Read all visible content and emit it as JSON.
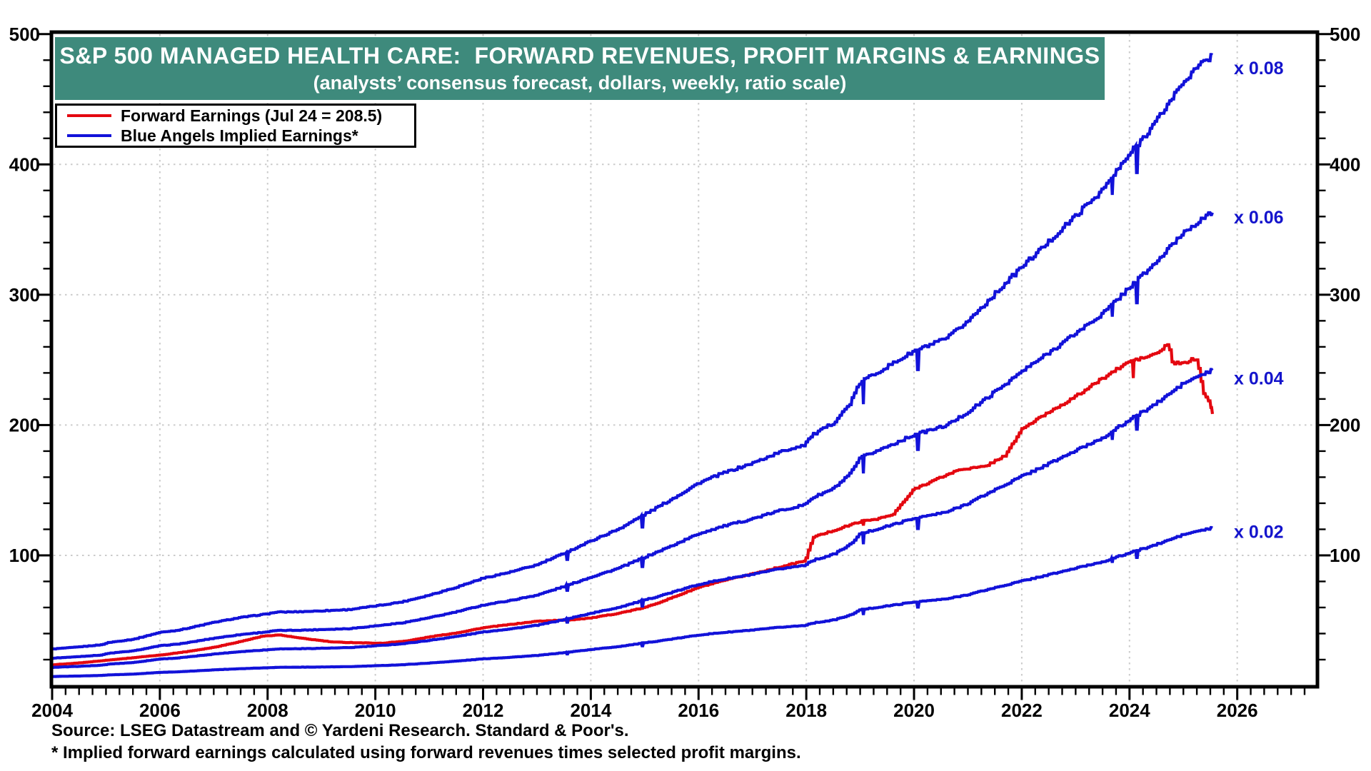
{
  "banner": {
    "title": "S&P 500 MANAGED HEALTH CARE:  FORWARD REVENUES, PROFIT MARGINS & EARNINGS",
    "subtitle": "(analysts’ consensus forecast, dollars, weekly, ratio scale)",
    "background_color": "#3e8a7c",
    "text_color": "#ffffff"
  },
  "legend": {
    "items": [
      {
        "label": "Forward Earnings (Jul 24 = 208.5)",
        "color_key": "earnings"
      },
      {
        "label": "Blue Angels Implied Earnings*",
        "color_key": "implied"
      }
    ]
  },
  "footer": {
    "source": "Source: LSEG Datastream and © Yardeni Research. Standard & Poor's.",
    "footnote": "* Implied forward earnings calculated using forward revenues times selected profit margins."
  },
  "chart_data": {
    "type": "line",
    "title": "S&P 500 MANAGED HEALTH CARE: FORWARD REVENUES, PROFIT MARGINS & EARNINGS",
    "subtitle": "(analysts' consensus forecast, dollars, weekly, ratio scale)",
    "colors": {
      "earnings": "#e40810",
      "implied": "#1212d9",
      "multiplier_label": "#1414cc",
      "grid": "#cbcbcb",
      "axis": "#000000"
    },
    "x_axis": {
      "start": 2004,
      "end": 2027.5,
      "label_years": [
        2004,
        2006,
        2008,
        2010,
        2012,
        2014,
        2016,
        2018,
        2020,
        2022,
        2024,
        2026
      ],
      "minor_tick_interval_years": 0.25,
      "gridline_years": [
        2006,
        2008,
        2010,
        2012,
        2014,
        2016,
        2018,
        2020,
        2022,
        2024,
        2026
      ]
    },
    "y_axis": {
      "min": 0,
      "max": 500,
      "major_ticks": [
        100,
        200,
        300,
        400,
        500
      ],
      "minor_tick_interval": 20,
      "gridlines": [
        100,
        200,
        300,
        400
      ],
      "labels_both_sides": true
    },
    "legend_position": "top-left",
    "grid": "dotted",
    "series": [
      {
        "name": "Forward Earnings",
        "color_key": "earnings",
        "last_observation": "Jul 24",
        "last_value": 208.5,
        "peak_value": 263,
        "peak_year": 2024.7
      },
      {
        "name": "Blue Angels Implied Earnings (forward revenues × margin)",
        "color_key": "implied",
        "multipliers": [
          0.08,
          0.06,
          0.04,
          0.02
        ],
        "end_values_mid_2025": [
          484,
          363,
          242,
          121
        ]
      }
    ],
    "multiplier_labels": [
      {
        "text": "x 0.08",
        "multiplier": 0.08,
        "y_offset": 19
      },
      {
        "text": "x 0.06",
        "multiplier": 0.06,
        "y_offset": 7
      },
      {
        "text": "x 0.04",
        "multiplier": 0.04,
        "y_offset": 12
      },
      {
        "text": "x 0.02",
        "multiplier": 0.02,
        "y_offset": 6
      }
    ],
    "forward_revenues_anchors": [
      [
        2004.0,
        352
      ],
      [
        2004.4,
        368
      ],
      [
        2004.9,
        392
      ],
      [
        2005.05,
        415
      ],
      [
        2005.5,
        445
      ],
      [
        2006.0,
        512
      ],
      [
        2006.3,
        530
      ],
      [
        2006.5,
        550
      ],
      [
        2007.0,
        608
      ],
      [
        2007.5,
        655
      ],
      [
        2008.0,
        690
      ],
      [
        2008.15,
        705
      ],
      [
        2008.6,
        710
      ],
      [
        2009.0,
        718
      ],
      [
        2009.5,
        730
      ],
      [
        2010.0,
        765
      ],
      [
        2010.5,
        805
      ],
      [
        2011.0,
        870
      ],
      [
        2011.5,
        945
      ],
      [
        2012.0,
        1032
      ],
      [
        2012.5,
        1090
      ],
      [
        2013.0,
        1160
      ],
      [
        2013.5,
        1270
      ],
      [
        2014.0,
        1390
      ],
      [
        2014.5,
        1500
      ],
      [
        2015.0,
        1645
      ],
      [
        2015.5,
        1790
      ],
      [
        2016.0,
        1945
      ],
      [
        2016.4,
        2030
      ],
      [
        2017.0,
        2135
      ],
      [
        2017.5,
        2240
      ],
      [
        2017.95,
        2310
      ],
      [
        2018.1,
        2400
      ],
      [
        2018.5,
        2520
      ],
      [
        2018.8,
        2700
      ],
      [
        2019.0,
        2915
      ],
      [
        2019.5,
        3060
      ],
      [
        2020.0,
        3210
      ],
      [
        2020.6,
        3330
      ],
      [
        2021.0,
        3500
      ],
      [
        2021.5,
        3760
      ],
      [
        2022.0,
        4020
      ],
      [
        2022.5,
        4260
      ],
      [
        2023.0,
        4510
      ],
      [
        2023.5,
        4760
      ],
      [
        2024.0,
        5100
      ],
      [
        2024.5,
        5420
      ],
      [
        2025.0,
        5800
      ],
      [
        2025.3,
        5950
      ],
      [
        2025.54,
        6050
      ]
    ],
    "forward_earnings_anchors": [
      [
        2004.0,
        16
      ],
      [
        2004.5,
        17.5
      ],
      [
        2005.0,
        19.5
      ],
      [
        2005.5,
        21.5
      ],
      [
        2006.0,
        23.5
      ],
      [
        2006.5,
        26.2
      ],
      [
        2007.0,
        29.5
      ],
      [
        2007.5,
        34
      ],
      [
        2007.9,
        38
      ],
      [
        2008.2,
        39
      ],
      [
        2008.6,
        36.5
      ],
      [
        2009.2,
        33.5
      ],
      [
        2010.1,
        32.5
      ],
      [
        2010.6,
        34.5
      ],
      [
        2011.0,
        37.5
      ],
      [
        2011.5,
        40.5
      ],
      [
        2012.0,
        44.5
      ],
      [
        2012.5,
        47
      ],
      [
        2013.0,
        49.5
      ],
      [
        2013.6,
        50.5
      ],
      [
        2014.0,
        52
      ],
      [
        2014.5,
        55.5
      ],
      [
        2015.0,
        60
      ],
      [
        2015.5,
        67.5
      ],
      [
        2016.0,
        75.5
      ],
      [
        2016.5,
        81
      ],
      [
        2017.0,
        86
      ],
      [
        2017.5,
        91
      ],
      [
        2017.98,
        96
      ],
      [
        2018.12,
        114
      ],
      [
        2018.5,
        119
      ],
      [
        2019.0,
        126
      ],
      [
        2019.3,
        128
      ],
      [
        2019.6,
        131
      ],
      [
        2020.0,
        151
      ],
      [
        2020.5,
        160
      ],
      [
        2020.85,
        166
      ],
      [
        2021.3,
        168
      ],
      [
        2021.7,
        177
      ],
      [
        2022.0,
        197
      ],
      [
        2022.5,
        210
      ],
      [
        2023.0,
        222
      ],
      [
        2023.5,
        236
      ],
      [
        2024.0,
        249
      ],
      [
        2024.3,
        252
      ],
      [
        2024.55,
        256
      ],
      [
        2024.72,
        263
      ],
      [
        2024.78,
        248
      ],
      [
        2025.0,
        247
      ],
      [
        2025.18,
        251
      ],
      [
        2025.27,
        248
      ],
      [
        2025.32,
        235
      ],
      [
        2025.38,
        224
      ],
      [
        2025.45,
        221
      ],
      [
        2025.5,
        215
      ],
      [
        2025.54,
        208.5
      ]
    ],
    "revenue_spikes": [
      {
        "t": 2013.56,
        "depth": 0.05
      },
      {
        "t": 2014.96,
        "depth": 0.065
      },
      {
        "t": 2019.06,
        "depth": 0.075
      },
      {
        "t": 2020.07,
        "depth": 0.06
      },
      {
        "t": 2023.68,
        "depth": 0.035
      },
      {
        "t": 2024.14,
        "depth": 0.05
      }
    ],
    "earnings_spikes": [
      {
        "t": 2019.06,
        "depth": 0.03
      },
      {
        "t": 2024.07,
        "depth": 0.055
      }
    ],
    "data_end_year": 2025.54
  }
}
